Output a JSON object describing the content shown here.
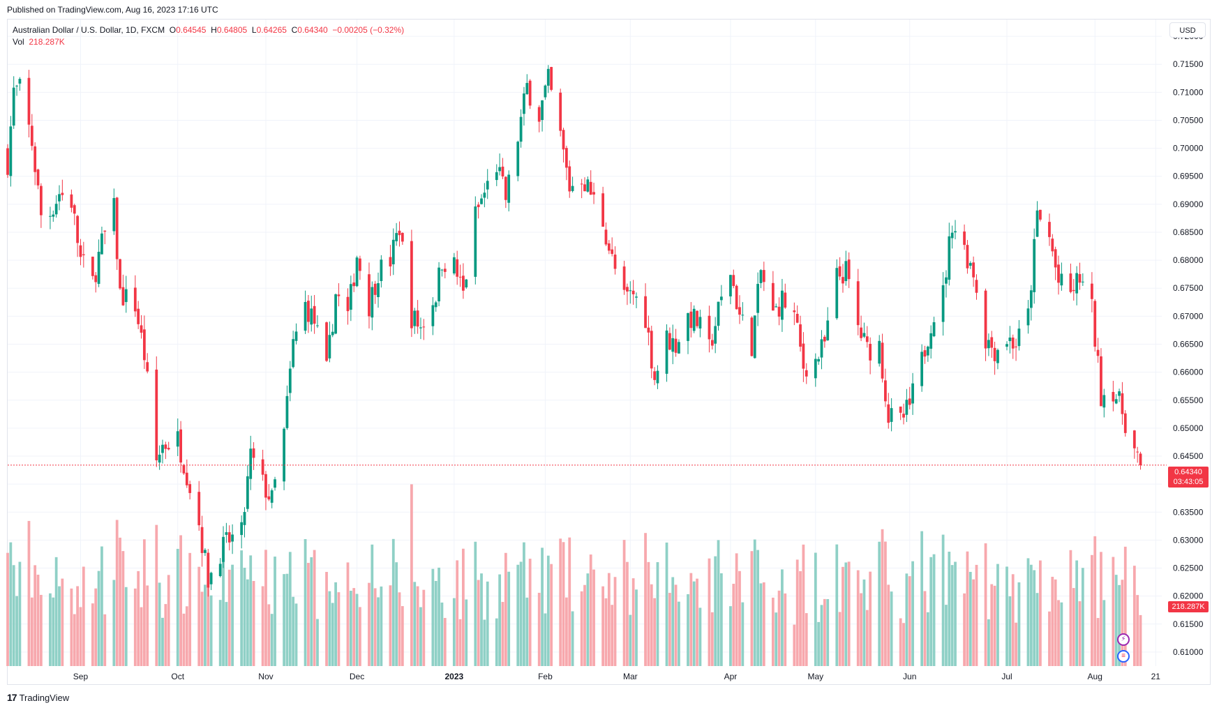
{
  "header": {
    "published": "Published on TradingView.com, Aug 16, 2023 17:16 UTC"
  },
  "legend": {
    "symbol": "Australian Dollar / U.S. Dollar, 1D, FXCM",
    "o_label": "O",
    "o_value": "0.64545",
    "h_label": "H",
    "h_value": "0.64805",
    "l_label": "L",
    "l_value": "0.64265",
    "c_label": "C",
    "c_value": "0.64340",
    "change": "−0.00205 (−0.32%)",
    "vol_label": "Vol",
    "vol_value": "218.287K"
  },
  "toolbar": {
    "currency_button": "USD"
  },
  "last_price": {
    "value": "0.64340",
    "countdown": "03:43:05"
  },
  "last_volume": {
    "value": "218.287K"
  },
  "footer": {
    "brand": "TradingView",
    "logo": "17"
  },
  "icons": {
    "lightning": "lightning-icon",
    "flag": "us-flag-icon"
  },
  "colors": {
    "up": "#089981",
    "down": "#f23645",
    "up_vol": "#8fd0c6",
    "down_vol": "#f7a8ad",
    "grid": "#f0f3fa"
  },
  "chart_data": {
    "type": "candlestick",
    "y_axis": {
      "ticks": [
        "0.72000",
        "0.71500",
        "0.71000",
        "0.70500",
        "0.70000",
        "0.69500",
        "0.69000",
        "0.68500",
        "0.68000",
        "0.67500",
        "0.67000",
        "0.66500",
        "0.66000",
        "0.65500",
        "0.65000",
        "0.64500",
        "0.64000",
        "0.63500",
        "0.63000",
        "0.62500",
        "0.62000",
        "0.61500",
        "0.61000"
      ],
      "ylim": [
        0.6075,
        0.723
      ]
    },
    "x_axis": {
      "ticks": [
        {
          "label": "Sep",
          "date": "2022-09-01"
        },
        {
          "label": "Oct",
          "date": "2022-10-03"
        },
        {
          "label": "Nov",
          "date": "2022-11-01"
        },
        {
          "label": "Dec",
          "date": "2022-12-01"
        },
        {
          "label": "2023",
          "date": "2023-01-02"
        },
        {
          "label": "Feb",
          "date": "2023-02-01"
        },
        {
          "label": "Mar",
          "date": "2023-03-01"
        },
        {
          "label": "Apr",
          "date": "2023-04-03"
        },
        {
          "label": "May",
          "date": "2023-05-01"
        },
        {
          "label": "Jun",
          "date": "2023-06-01"
        },
        {
          "label": "Jul",
          "date": "2023-07-03"
        },
        {
          "label": "Aug",
          "date": "2023-08-01"
        },
        {
          "label": "21",
          "date": "2023-08-21"
        }
      ],
      "range": [
        "2022-08-08",
        "2023-08-23"
      ]
    },
    "close_series": [
      [
        "2022-08-08",
        0.6975
      ],
      [
        "2022-08-10",
        0.71
      ],
      [
        "2022-08-12",
        0.7105
      ],
      [
        "2022-08-16",
        0.701
      ],
      [
        "2022-08-19",
        0.688
      ],
      [
        "2022-08-22",
        0.6885
      ],
      [
        "2022-08-25",
        0.692
      ],
      [
        "2022-08-29",
        0.6905
      ],
      [
        "2022-09-01",
        0.68
      ],
      [
        "2022-09-05",
        0.676
      ],
      [
        "2022-09-08",
        0.683
      ],
      [
        "2022-09-12",
        0.689
      ],
      [
        "2022-09-14",
        0.674
      ],
      [
        "2022-09-19",
        0.672
      ],
      [
        "2022-09-22",
        0.663
      ],
      [
        "2022-09-26",
        0.644
      ],
      [
        "2022-09-28",
        0.647
      ],
      [
        "2022-10-03",
        0.648
      ],
      [
        "2022-10-06",
        0.642
      ],
      [
        "2022-10-10",
        0.633
      ],
      [
        "2022-10-13",
        0.623
      ],
      [
        "2022-10-17",
        0.628
      ],
      [
        "2022-10-20",
        0.63
      ],
      [
        "2022-10-24",
        0.631
      ],
      [
        "2022-10-27",
        0.645
      ],
      [
        "2022-10-31",
        0.64
      ],
      [
        "2022-11-03",
        0.637
      ],
      [
        "2022-11-07",
        0.649
      ],
      [
        "2022-11-10",
        0.665
      ],
      [
        "2022-11-14",
        0.672
      ],
      [
        "2022-11-17",
        0.669
      ],
      [
        "2022-11-21",
        0.66
      ],
      [
        "2022-11-24",
        0.674
      ],
      [
        "2022-11-28",
        0.67
      ],
      [
        "2022-12-01",
        0.681
      ],
      [
        "2022-12-05",
        0.672
      ],
      [
        "2022-12-08",
        0.678
      ],
      [
        "2022-12-12",
        0.68
      ],
      [
        "2022-12-15",
        0.686
      ],
      [
        "2022-12-19",
        0.67
      ],
      [
        "2022-12-22",
        0.668
      ],
      [
        "2022-12-27",
        0.674
      ],
      [
        "2022-12-29",
        0.68
      ],
      [
        "2023-01-02",
        0.679
      ],
      [
        "2023-01-05",
        0.674
      ],
      [
        "2023-01-09",
        0.688
      ],
      [
        "2023-01-12",
        0.692
      ],
      [
        "2023-01-16",
        0.697
      ],
      [
        "2023-01-19",
        0.691
      ],
      [
        "2023-01-23",
        0.702
      ],
      [
        "2023-01-26",
        0.711
      ],
      [
        "2023-01-30",
        0.706
      ],
      [
        "2023-02-02",
        0.712
      ],
      [
        "2023-02-06",
        0.702
      ],
      [
        "2023-02-09",
        0.693
      ],
      [
        "2023-02-13",
        0.695
      ],
      [
        "2023-02-16",
        0.692
      ],
      [
        "2023-02-20",
        0.687
      ],
      [
        "2023-02-23",
        0.68
      ],
      [
        "2023-02-27",
        0.673
      ],
      [
        "2023-03-02",
        0.674
      ],
      [
        "2023-03-06",
        0.67
      ],
      [
        "2023-03-09",
        0.659
      ],
      [
        "2023-03-13",
        0.666
      ],
      [
        "2023-03-16",
        0.665
      ],
      [
        "2023-03-20",
        0.67
      ],
      [
        "2023-03-23",
        0.669
      ],
      [
        "2023-03-27",
        0.664
      ],
      [
        "2023-03-30",
        0.671
      ],
      [
        "2023-04-03",
        0.678
      ],
      [
        "2023-04-06",
        0.67
      ],
      [
        "2023-04-10",
        0.665
      ],
      [
        "2023-04-13",
        0.678
      ],
      [
        "2023-04-17",
        0.67
      ],
      [
        "2023-04-20",
        0.673
      ],
      [
        "2023-04-24",
        0.67
      ],
      [
        "2023-04-27",
        0.661
      ],
      [
        "2023-05-01",
        0.662
      ],
      [
        "2023-05-04",
        0.665
      ],
      [
        "2023-05-08",
        0.677
      ],
      [
        "2023-05-11",
        0.678
      ],
      [
        "2023-05-15",
        0.668
      ],
      [
        "2023-05-18",
        0.664
      ],
      [
        "2023-05-22",
        0.665
      ],
      [
        "2023-05-25",
        0.652
      ],
      [
        "2023-05-29",
        0.651
      ],
      [
        "2023-06-01",
        0.654
      ],
      [
        "2023-06-05",
        0.662
      ],
      [
        "2023-06-08",
        0.669
      ],
      [
        "2023-06-12",
        0.674
      ],
      [
        "2023-06-15",
        0.687
      ],
      [
        "2023-06-19",
        0.682
      ],
      [
        "2023-06-22",
        0.678
      ],
      [
        "2023-06-26",
        0.666
      ],
      [
        "2023-06-29",
        0.664
      ],
      [
        "2023-07-03",
        0.666
      ],
      [
        "2023-07-06",
        0.665
      ],
      [
        "2023-07-10",
        0.67
      ],
      [
        "2023-07-13",
        0.688
      ],
      [
        "2023-07-17",
        0.684
      ],
      [
        "2023-07-20",
        0.676
      ],
      [
        "2023-07-24",
        0.674
      ],
      [
        "2023-07-27",
        0.677
      ],
      [
        "2023-07-31",
        0.671
      ],
      [
        "2023-08-03",
        0.656
      ],
      [
        "2023-08-07",
        0.657
      ],
      [
        "2023-08-10",
        0.653
      ],
      [
        "2023-08-14",
        0.646
      ],
      [
        "2023-08-16",
        0.6434
      ]
    ]
  }
}
